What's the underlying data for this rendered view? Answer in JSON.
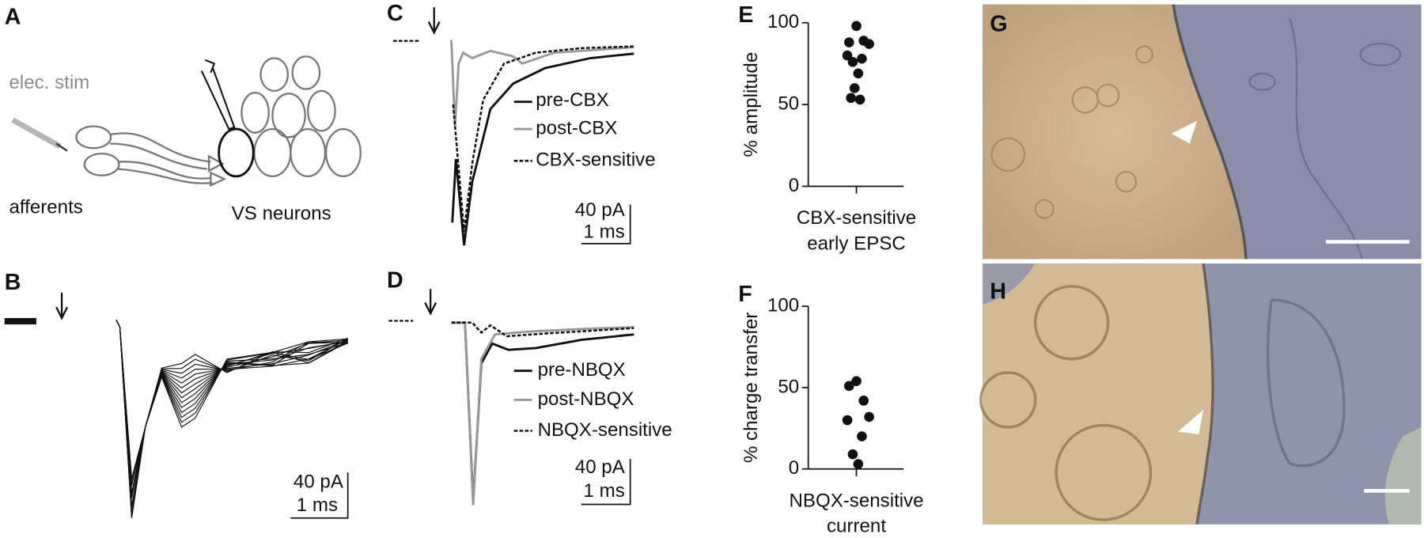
{
  "panels": {
    "A": {
      "letter": "A",
      "stim": "elec. stim",
      "afferents": "afferents",
      "neurons": "VS neurons"
    },
    "B": {
      "letter": "B",
      "scale_amp": "40 pA",
      "scale_time": "1 ms"
    },
    "C": {
      "letter": "C",
      "legend": [
        "pre-CBX",
        "post-CBX",
        "CBX-sensitive"
      ],
      "scale_amp": "40 pA",
      "scale_time": "1 ms"
    },
    "D": {
      "letter": "D",
      "legend": [
        "pre-NBQX",
        "post-NBQX",
        "NBQX-sensitive"
      ],
      "scale_amp": "40 pA",
      "scale_time": "1 ms"
    },
    "G": {
      "letter": "G"
    },
    "H": {
      "letter": "H"
    }
  },
  "chart_data": [
    {
      "type": "strip",
      "label": "E",
      "ylabel": "% amplitude",
      "xlabel": [
        "CBX-sensitive",
        "early EPSC"
      ],
      "values": [
        98,
        88,
        89,
        87,
        80,
        78,
        76,
        69,
        60,
        54,
        53
      ],
      "color": "#111111",
      "ylim": [
        0,
        100
      ],
      "yticks": [
        0,
        50,
        100
      ]
    },
    {
      "type": "strip",
      "label": "F",
      "ylabel": "% charge transfer",
      "xlabel": [
        "NBQX-sensitive",
        "current"
      ],
      "values": [
        54,
        51,
        42,
        32,
        30,
        20,
        9,
        3
      ],
      "color": "#111111",
      "ylim": [
        0,
        100
      ],
      "yticks": [
        0,
        50,
        100
      ]
    }
  ]
}
